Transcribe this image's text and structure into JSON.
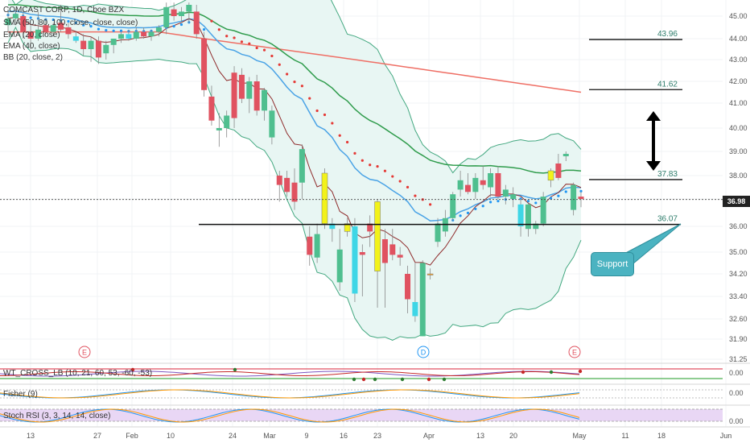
{
  "legend": {
    "title": "COMCAST CORP, 1D, Cboe BZX",
    "sma": "SMA (50, 80, 100, close, close, close)",
    "ema20": "EMA (20, close)",
    "ema40": "EMA (40, close)",
    "bb": "BB (20, close, 2)"
  },
  "indicators": {
    "wt": "WT_CROSS_LB (10, 21, 60, 53, -60, -53)",
    "fisher": "Fisher (9)",
    "stoch": "Stoch RSI (3, 3, 14, 14, close)",
    "wt_value": "0.00",
    "fisher_value": "0.00",
    "stoch_value": "0.00"
  },
  "callout": {
    "label": "Support"
  },
  "events": [
    "E",
    "D",
    "E"
  ],
  "price_badge": "36.98",
  "colors": {
    "up": "#4fbf8f",
    "down": "#e05260",
    "yellow": "#f2f21a",
    "cyan": "#3fd6e6",
    "bb_fill": "#e8f6f3",
    "bb_line": "#43a880",
    "ema20": "#4aa3e6",
    "ema40": "#2f9c4c",
    "sma": "#ef6f65",
    "dots": "#2196f3",
    "psar_red": "#e53935"
  },
  "chart_data": {
    "type": "candlestick",
    "y_ticks": [
      "45.00",
      "44.00",
      "43.00",
      "42.00",
      "41.00",
      "40.00",
      "39.00",
      "38.00",
      "37.00",
      "36.00",
      "35.00",
      "34.20",
      "33.40",
      "32.60",
      "31.90",
      "31.25"
    ],
    "x_ticks": [
      "13",
      "27",
      "Feb",
      "10",
      "24",
      "Mar",
      "9",
      "16",
      "23",
      "Apr",
      "13",
      "20",
      "May",
      "11",
      "18",
      "Jun"
    ],
    "ylim": [
      31.25,
      45.6
    ],
    "candles": [
      {
        "o": 44.6,
        "h": 45.3,
        "l": 44.3,
        "c": 44.9,
        "k": "up"
      },
      {
        "o": 44.9,
        "h": 45.3,
        "l": 44.6,
        "c": 45.1,
        "k": "up"
      },
      {
        "o": 45.0,
        "h": 45.3,
        "l": 44.0,
        "c": 44.3,
        "k": "down"
      },
      {
        "o": 44.3,
        "h": 44.6,
        "l": 43.5,
        "c": 44.0,
        "k": "down"
      },
      {
        "o": 44.0,
        "h": 45.2,
        "l": 43.9,
        "c": 44.4,
        "k": "up"
      },
      {
        "o": 44.6,
        "h": 44.9,
        "l": 44.2,
        "c": 44.3,
        "k": "down"
      },
      {
        "o": 44.3,
        "h": 44.7,
        "l": 44.1,
        "c": 44.6,
        "k": "up"
      },
      {
        "o": 44.7,
        "h": 45.5,
        "l": 44.3,
        "c": 44.4,
        "k": "down"
      },
      {
        "o": 44.5,
        "h": 44.7,
        "l": 44.0,
        "c": 44.2,
        "k": "down"
      },
      {
        "o": 44.1,
        "h": 44.3,
        "l": 43.8,
        "c": 43.9,
        "k": "cyan"
      },
      {
        "o": 43.9,
        "h": 44.2,
        "l": 43.2,
        "c": 43.5,
        "k": "down"
      },
      {
        "o": 43.5,
        "h": 44.1,
        "l": 42.9,
        "c": 43.9,
        "k": "up"
      },
      {
        "o": 43.9,
        "h": 44.1,
        "l": 42.8,
        "c": 43.1,
        "k": "down"
      },
      {
        "o": 43.3,
        "h": 43.9,
        "l": 43.0,
        "c": 43.7,
        "k": "up"
      },
      {
        "o": 43.7,
        "h": 44.0,
        "l": 43.3,
        "c": 44.0,
        "k": "up"
      },
      {
        "o": 44.0,
        "h": 44.3,
        "l": 43.8,
        "c": 44.2,
        "k": "up"
      },
      {
        "o": 44.2,
        "h": 44.4,
        "l": 43.9,
        "c": 44.0,
        "k": "cyan"
      },
      {
        "o": 44.0,
        "h": 44.5,
        "l": 43.9,
        "c": 44.3,
        "k": "up"
      },
      {
        "o": 44.3,
        "h": 44.5,
        "l": 44.0,
        "c": 44.1,
        "k": "down"
      },
      {
        "o": 44.1,
        "h": 44.4,
        "l": 43.9,
        "c": 44.3,
        "k": "up"
      },
      {
        "o": 44.3,
        "h": 44.6,
        "l": 44.1,
        "c": 44.5,
        "k": "up"
      },
      {
        "o": 44.5,
        "h": 45.6,
        "l": 44.2,
        "c": 45.4,
        "k": "up"
      },
      {
        "o": 45.3,
        "h": 45.6,
        "l": 44.8,
        "c": 45.0,
        "k": "down"
      },
      {
        "o": 45.0,
        "h": 45.4,
        "l": 44.7,
        "c": 45.2,
        "k": "up"
      },
      {
        "o": 45.2,
        "h": 45.6,
        "l": 44.7,
        "c": 45.5,
        "k": "up"
      },
      {
        "o": 45.2,
        "h": 45.5,
        "l": 44.0,
        "c": 44.2,
        "k": "down"
      },
      {
        "o": 44.0,
        "h": 44.3,
        "l": 41.3,
        "c": 41.6,
        "k": "down"
      },
      {
        "o": 41.3,
        "h": 41.8,
        "l": 40.1,
        "c": 40.3,
        "k": "down"
      },
      {
        "o": 40.0,
        "h": 40.6,
        "l": 39.2,
        "c": 39.9,
        "k": "up"
      },
      {
        "o": 40.0,
        "h": 40.7,
        "l": 39.6,
        "c": 40.5,
        "k": "up"
      },
      {
        "o": 40.4,
        "h": 42.7,
        "l": 40.0,
        "c": 42.4,
        "k": "down"
      },
      {
        "o": 42.3,
        "h": 42.6,
        "l": 41.0,
        "c": 41.2,
        "k": "down"
      },
      {
        "o": 41.2,
        "h": 42.2,
        "l": 40.6,
        "c": 42.0,
        "k": "up"
      },
      {
        "o": 42.0,
        "h": 42.3,
        "l": 40.5,
        "c": 40.7,
        "k": "down"
      },
      {
        "o": 40.7,
        "h": 41.7,
        "l": 40.3,
        "c": 41.6,
        "k": "up"
      },
      {
        "o": 40.7,
        "h": 40.9,
        "l": 39.3,
        "c": 39.6,
        "k": "up"
      },
      {
        "o": 37.6,
        "h": 38.2,
        "l": 36.9,
        "c": 38.0,
        "k": "down"
      },
      {
        "o": 37.9,
        "h": 38.2,
        "l": 37.1,
        "c": 37.3,
        "k": "down"
      },
      {
        "o": 36.9,
        "h": 38.3,
        "l": 36.6,
        "c": 37.7,
        "k": "down"
      },
      {
        "o": 37.7,
        "h": 39.3,
        "l": 37.0,
        "c": 39.1,
        "k": "up"
      },
      {
        "o": 35.6,
        "h": 36.0,
        "l": 34.5,
        "c": 34.9,
        "k": "down"
      },
      {
        "o": 35.7,
        "h": 36.1,
        "l": 34.6,
        "c": 34.8,
        "k": "up"
      },
      {
        "o": 36.1,
        "h": 38.3,
        "l": 35.9,
        "c": 38.1,
        "k": "yellow"
      },
      {
        "o": 35.9,
        "h": 36.3,
        "l": 35.4,
        "c": 36.1,
        "k": "cyan"
      },
      {
        "o": 35.1,
        "h": 35.9,
        "l": 33.6,
        "c": 33.9,
        "k": "up"
      },
      {
        "o": 36.1,
        "h": 36.3,
        "l": 35.6,
        "c": 35.8,
        "k": "yellow"
      },
      {
        "o": 36.0,
        "h": 36.3,
        "l": 33.2,
        "c": 33.5,
        "k": "cyan"
      },
      {
        "o": 35.0,
        "h": 35.3,
        "l": 33.4,
        "c": 34.9,
        "k": "down"
      },
      {
        "o": 36.1,
        "h": 36.4,
        "l": 35.2,
        "c": 35.8,
        "k": "down"
      },
      {
        "o": 34.3,
        "h": 37.0,
        "l": 33.0,
        "c": 36.9,
        "k": "yellow"
      },
      {
        "o": 34.6,
        "h": 35.9,
        "l": 33.0,
        "c": 35.5,
        "k": "down"
      },
      {
        "o": 35.3,
        "h": 35.9,
        "l": 34.7,
        "c": 34.9,
        "k": "down"
      },
      {
        "o": 34.8,
        "h": 35.2,
        "l": 34.5,
        "c": 34.9,
        "k": "down"
      },
      {
        "o": 33.3,
        "h": 34.5,
        "l": 32.8,
        "c": 34.2,
        "k": "down"
      },
      {
        "o": 33.2,
        "h": 34.6,
        "l": 32.5,
        "c": 32.7,
        "k": "cyan"
      },
      {
        "o": 32.0,
        "h": 34.7,
        "l": 32.0,
        "c": 34.6,
        "k": "up"
      },
      {
        "o": 34.2,
        "h": 34.4,
        "l": 34.0,
        "c": 34.2,
        "k": "orange"
      },
      {
        "o": 35.4,
        "h": 36.3,
        "l": 35.2,
        "c": 36.1,
        "k": "up"
      },
      {
        "o": 35.8,
        "h": 36.6,
        "l": 35.6,
        "c": 36.3,
        "k": "up"
      },
      {
        "o": 36.3,
        "h": 37.3,
        "l": 36.2,
        "c": 37.2,
        "k": "up"
      },
      {
        "o": 37.4,
        "h": 38.2,
        "l": 37.1,
        "c": 37.8,
        "k": "up"
      },
      {
        "o": 37.6,
        "h": 38.1,
        "l": 37.2,
        "c": 37.3,
        "k": "down"
      },
      {
        "o": 37.3,
        "h": 38.1,
        "l": 37.0,
        "c": 37.9,
        "k": "up"
      },
      {
        "o": 37.8,
        "h": 38.4,
        "l": 37.4,
        "c": 37.6,
        "k": "down"
      },
      {
        "o": 37.5,
        "h": 38.3,
        "l": 37.1,
        "c": 38.1,
        "k": "up"
      },
      {
        "o": 38.1,
        "h": 38.4,
        "l": 37.0,
        "c": 37.1,
        "k": "down"
      },
      {
        "o": 37.1,
        "h": 37.6,
        "l": 36.8,
        "c": 37.4,
        "k": "up"
      },
      {
        "o": 37.0,
        "h": 37.5,
        "l": 36.7,
        "c": 37.2,
        "k": "up"
      },
      {
        "o": 36.0,
        "h": 37.0,
        "l": 35.6,
        "c": 36.8,
        "k": "cyan"
      },
      {
        "o": 36.8,
        "h": 36.9,
        "l": 35.6,
        "c": 35.9,
        "k": "up"
      },
      {
        "o": 35.9,
        "h": 36.2,
        "l": 35.7,
        "c": 36.1,
        "k": "up"
      },
      {
        "o": 36.1,
        "h": 37.3,
        "l": 36.0,
        "c": 37.1,
        "k": "up"
      },
      {
        "o": 37.8,
        "h": 38.3,
        "l": 37.5,
        "c": 38.2,
        "k": "yellow"
      },
      {
        "o": 38.5,
        "h": 38.9,
        "l": 37.8,
        "c": 37.9,
        "k": "down"
      },
      {
        "o": 38.8,
        "h": 39.0,
        "l": 38.6,
        "c": 38.9,
        "k": "up"
      },
      {
        "o": 36.6,
        "h": 37.7,
        "l": 36.4,
        "c": 37.6,
        "k": "up"
      },
      {
        "o": 37.1,
        "h": 37.3,
        "l": 36.7,
        "c": 37.0,
        "k": "down"
      }
    ],
    "fib_levels": [
      {
        "label": "43.96",
        "value": 43.96
      },
      {
        "label": "41.62",
        "value": 41.62
      },
      {
        "label": "37.83",
        "value": 37.83
      },
      {
        "label": "36.07",
        "value": 36.07
      }
    ],
    "current_price": 36.98
  }
}
